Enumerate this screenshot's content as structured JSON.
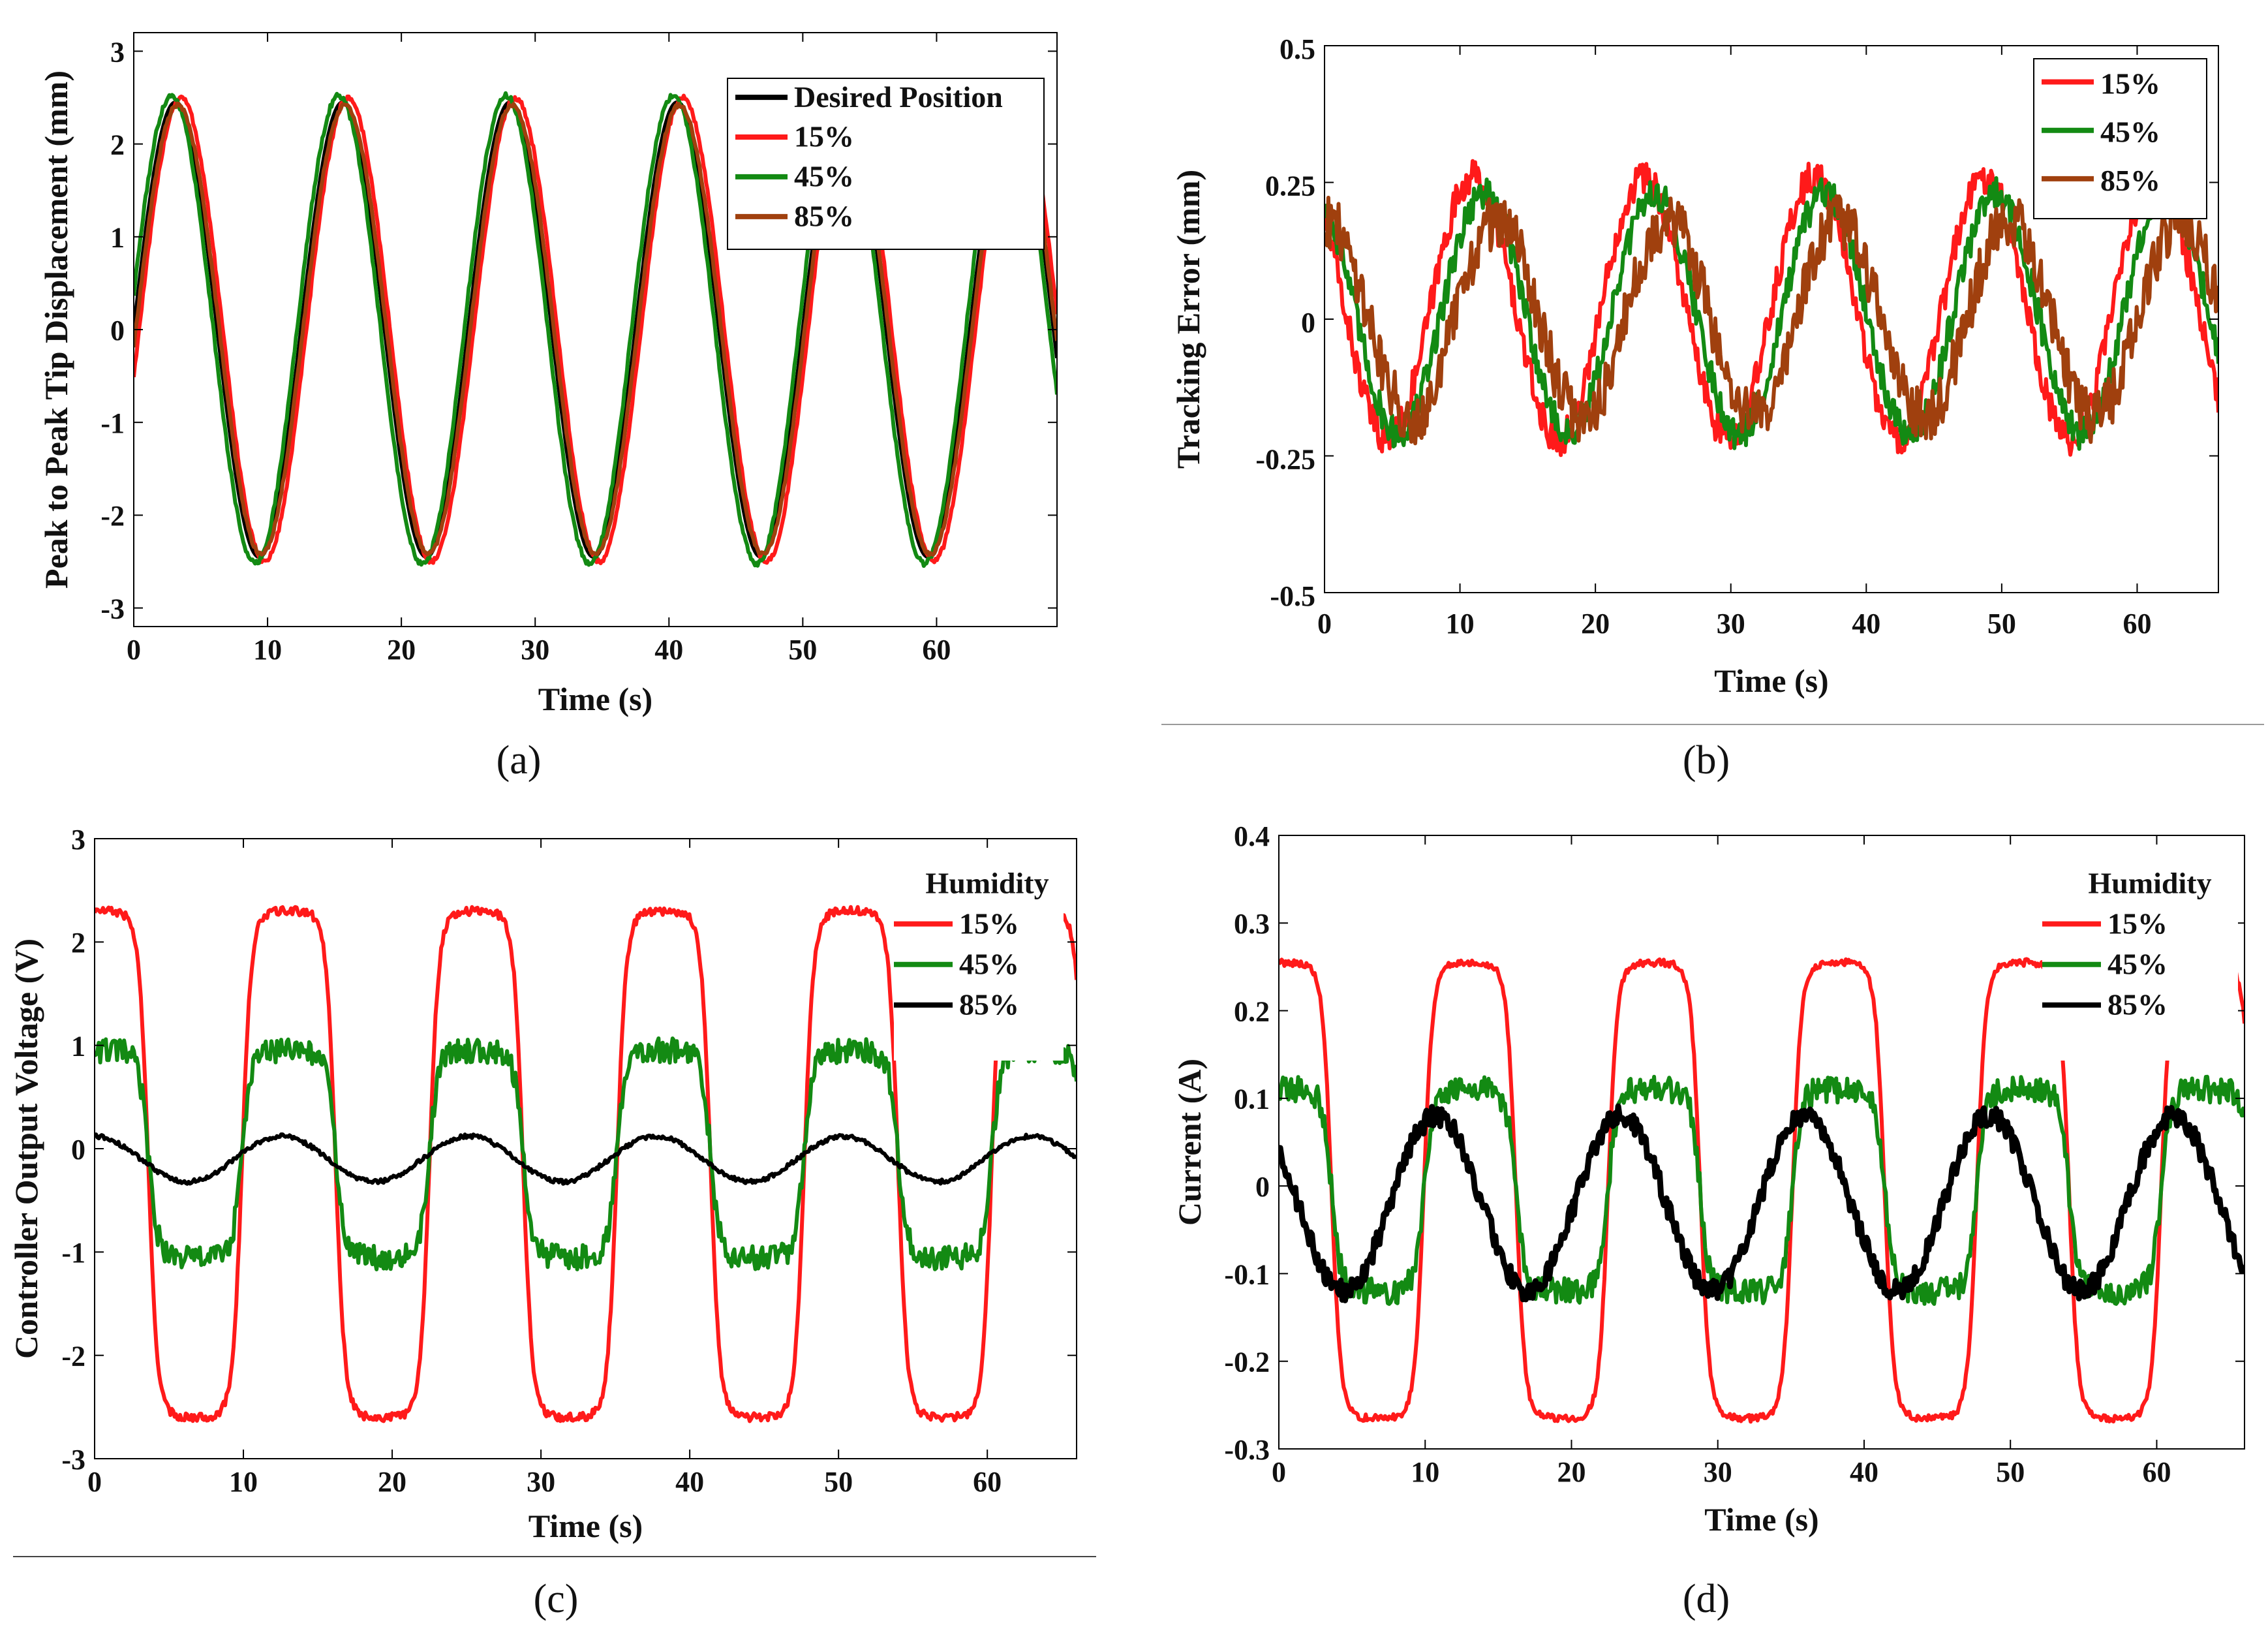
{
  "panels": [
    {
      "id": "a",
      "caption": "(a)",
      "chart_data": {
        "type": "line",
        "title": "",
        "xlabel": "Time (s)",
        "ylabel": "Peak to Peak Tip Displacement (mm)",
        "xlim": [
          0,
          69
        ],
        "ylim": [
          -3.2,
          3.2
        ],
        "xticks": [
          0,
          10,
          20,
          30,
          40,
          50,
          60
        ],
        "yticks": [
          -3,
          -2,
          -1,
          0,
          1,
          2,
          3
        ],
        "grid": false,
        "legend": {
          "placement": "top-right",
          "entries": [
            "Desired Position",
            "15%",
            "45%",
            "85%"
          ]
        },
        "series": [
          {
            "name": "Desired Position",
            "color": "#000000",
            "function": "sine",
            "amplitude": 2.45,
            "period": 12.5,
            "phase_shift": 0,
            "offset": 0,
            "noise": 0
          },
          {
            "name": "15%",
            "color": "#ff1a1a",
            "function": "sine",
            "amplitude": 2.5,
            "period": 12.5,
            "phase_shift": 0.4,
            "offset": 0,
            "noise": 0.03
          },
          {
            "name": "45%",
            "color": "#138a13",
            "function": "sine",
            "amplitude": 2.52,
            "period": 12.5,
            "phase_shift": -0.3,
            "offset": 0,
            "noise": 0.03
          },
          {
            "name": "85%",
            "color": "#a0400e",
            "function": "sine",
            "amplitude": 2.42,
            "period": 12.5,
            "phase_shift": 0.15,
            "offset": 0,
            "noise": 0.02
          }
        ]
      }
    },
    {
      "id": "b",
      "caption": "(b)",
      "chart_data": {
        "type": "line",
        "title": "",
        "xlabel": "Time (s)",
        "ylabel": "Tracking Error (mm)",
        "xlim": [
          0,
          66
        ],
        "ylim": [
          -0.5,
          0.5
        ],
        "xticks": [
          0,
          10,
          20,
          30,
          40,
          50,
          60
        ],
        "yticks": [
          -0.5,
          -0.25,
          0,
          0.25,
          0.5
        ],
        "ytick_labels": [
          "-0.5",
          "-0.25",
          "0",
          "0.25",
          "0.5"
        ],
        "grid": false,
        "legend": {
          "placement": "top-right",
          "entries": [
            "15%",
            "45%",
            "85%"
          ]
        },
        "series": [
          {
            "name": "15%",
            "color": "#ff1a1a",
            "function": "sine",
            "amplitude": 0.24,
            "period": 12.6,
            "phase_shift": 7.8,
            "offset": 0.02,
            "noise": 0.03
          },
          {
            "name": "45%",
            "color": "#138a13",
            "function": "sine",
            "amplitude": 0.22,
            "period": 12.6,
            "phase_shift": 8.6,
            "offset": 0.01,
            "noise": 0.03
          },
          {
            "name": "85%",
            "color": "#a0400e",
            "function": "sine",
            "amplitude": 0.18,
            "period": 12.6,
            "phase_shift": 9.6,
            "offset": 0.0,
            "noise": 0.05
          }
        ]
      }
    },
    {
      "id": "c",
      "caption": "(c)",
      "chart_data": {
        "type": "line",
        "title": "",
        "xlabel": "Time (s)",
        "ylabel": "Controller Output Voltage (V)",
        "xlim": [
          0,
          66
        ],
        "ylim": [
          -3,
          3
        ],
        "xticks": [
          0,
          10,
          20,
          30,
          40,
          50,
          60
        ],
        "yticks": [
          -3,
          -2,
          -1,
          0,
          1,
          2,
          3
        ],
        "grid": false,
        "legend": {
          "placement": "top-right",
          "title": "Humidity",
          "entries": [
            "15%",
            "45%",
            "85%"
          ]
        },
        "series": [
          {
            "name": "15%",
            "color": "#ff1a1a",
            "function": "square",
            "amplitude": 2.45,
            "period": 12.6,
            "phase_shift": -2.7,
            "offset": -0.15,
            "noise": 0.04
          },
          {
            "name": "45%",
            "color": "#138a13",
            "function": "square",
            "amplitude": 1.0,
            "period": 12.6,
            "phase_shift": -2.7,
            "offset": -0.05,
            "noise": 0.12
          },
          {
            "name": "85%",
            "color": "#000000",
            "function": "sine",
            "amplitude": 0.22,
            "period": 12.6,
            "phase_shift": -3.2,
            "offset": -0.1,
            "noise": 0.02
          }
        ]
      }
    },
    {
      "id": "d",
      "caption": "(d)",
      "chart_data": {
        "type": "line",
        "title": "",
        "xlabel": "Time (s)",
        "ylabel": "Current (A)",
        "xlim": [
          0,
          66
        ],
        "ylim": [
          -0.3,
          0.4
        ],
        "xticks": [
          0,
          10,
          20,
          30,
          40,
          50,
          60
        ],
        "yticks": [
          -0.3,
          -0.2,
          -0.1,
          0,
          0.1,
          0.2,
          0.3,
          0.4
        ],
        "grid": false,
        "legend": {
          "placement": "top-right",
          "title": "Humidity",
          "entries": [
            "15%",
            "45%",
            "85%"
          ]
        },
        "series": [
          {
            "name": "15%",
            "color": "#ff1a1a",
            "function": "square",
            "amplitude": 0.26,
            "period": 12.6,
            "phase_shift": -2.7,
            "offset": -0.005,
            "noise": 0.004
          },
          {
            "name": "45%",
            "color": "#138a13",
            "function": "square",
            "amplitude": 0.115,
            "period": 12.6,
            "phase_shift": -2.7,
            "offset": -0.005,
            "noise": 0.015
          },
          {
            "name": "85%",
            "color": "#000000",
            "function": "sine",
            "amplitude": 0.1,
            "period": 12.6,
            "phase_shift": -5.0,
            "offset": -0.02,
            "noise": 0.012
          }
        ]
      }
    }
  ],
  "colors": {
    "axis": "#000000",
    "divider": "#9a9a9a",
    "background": "#ffffff"
  }
}
